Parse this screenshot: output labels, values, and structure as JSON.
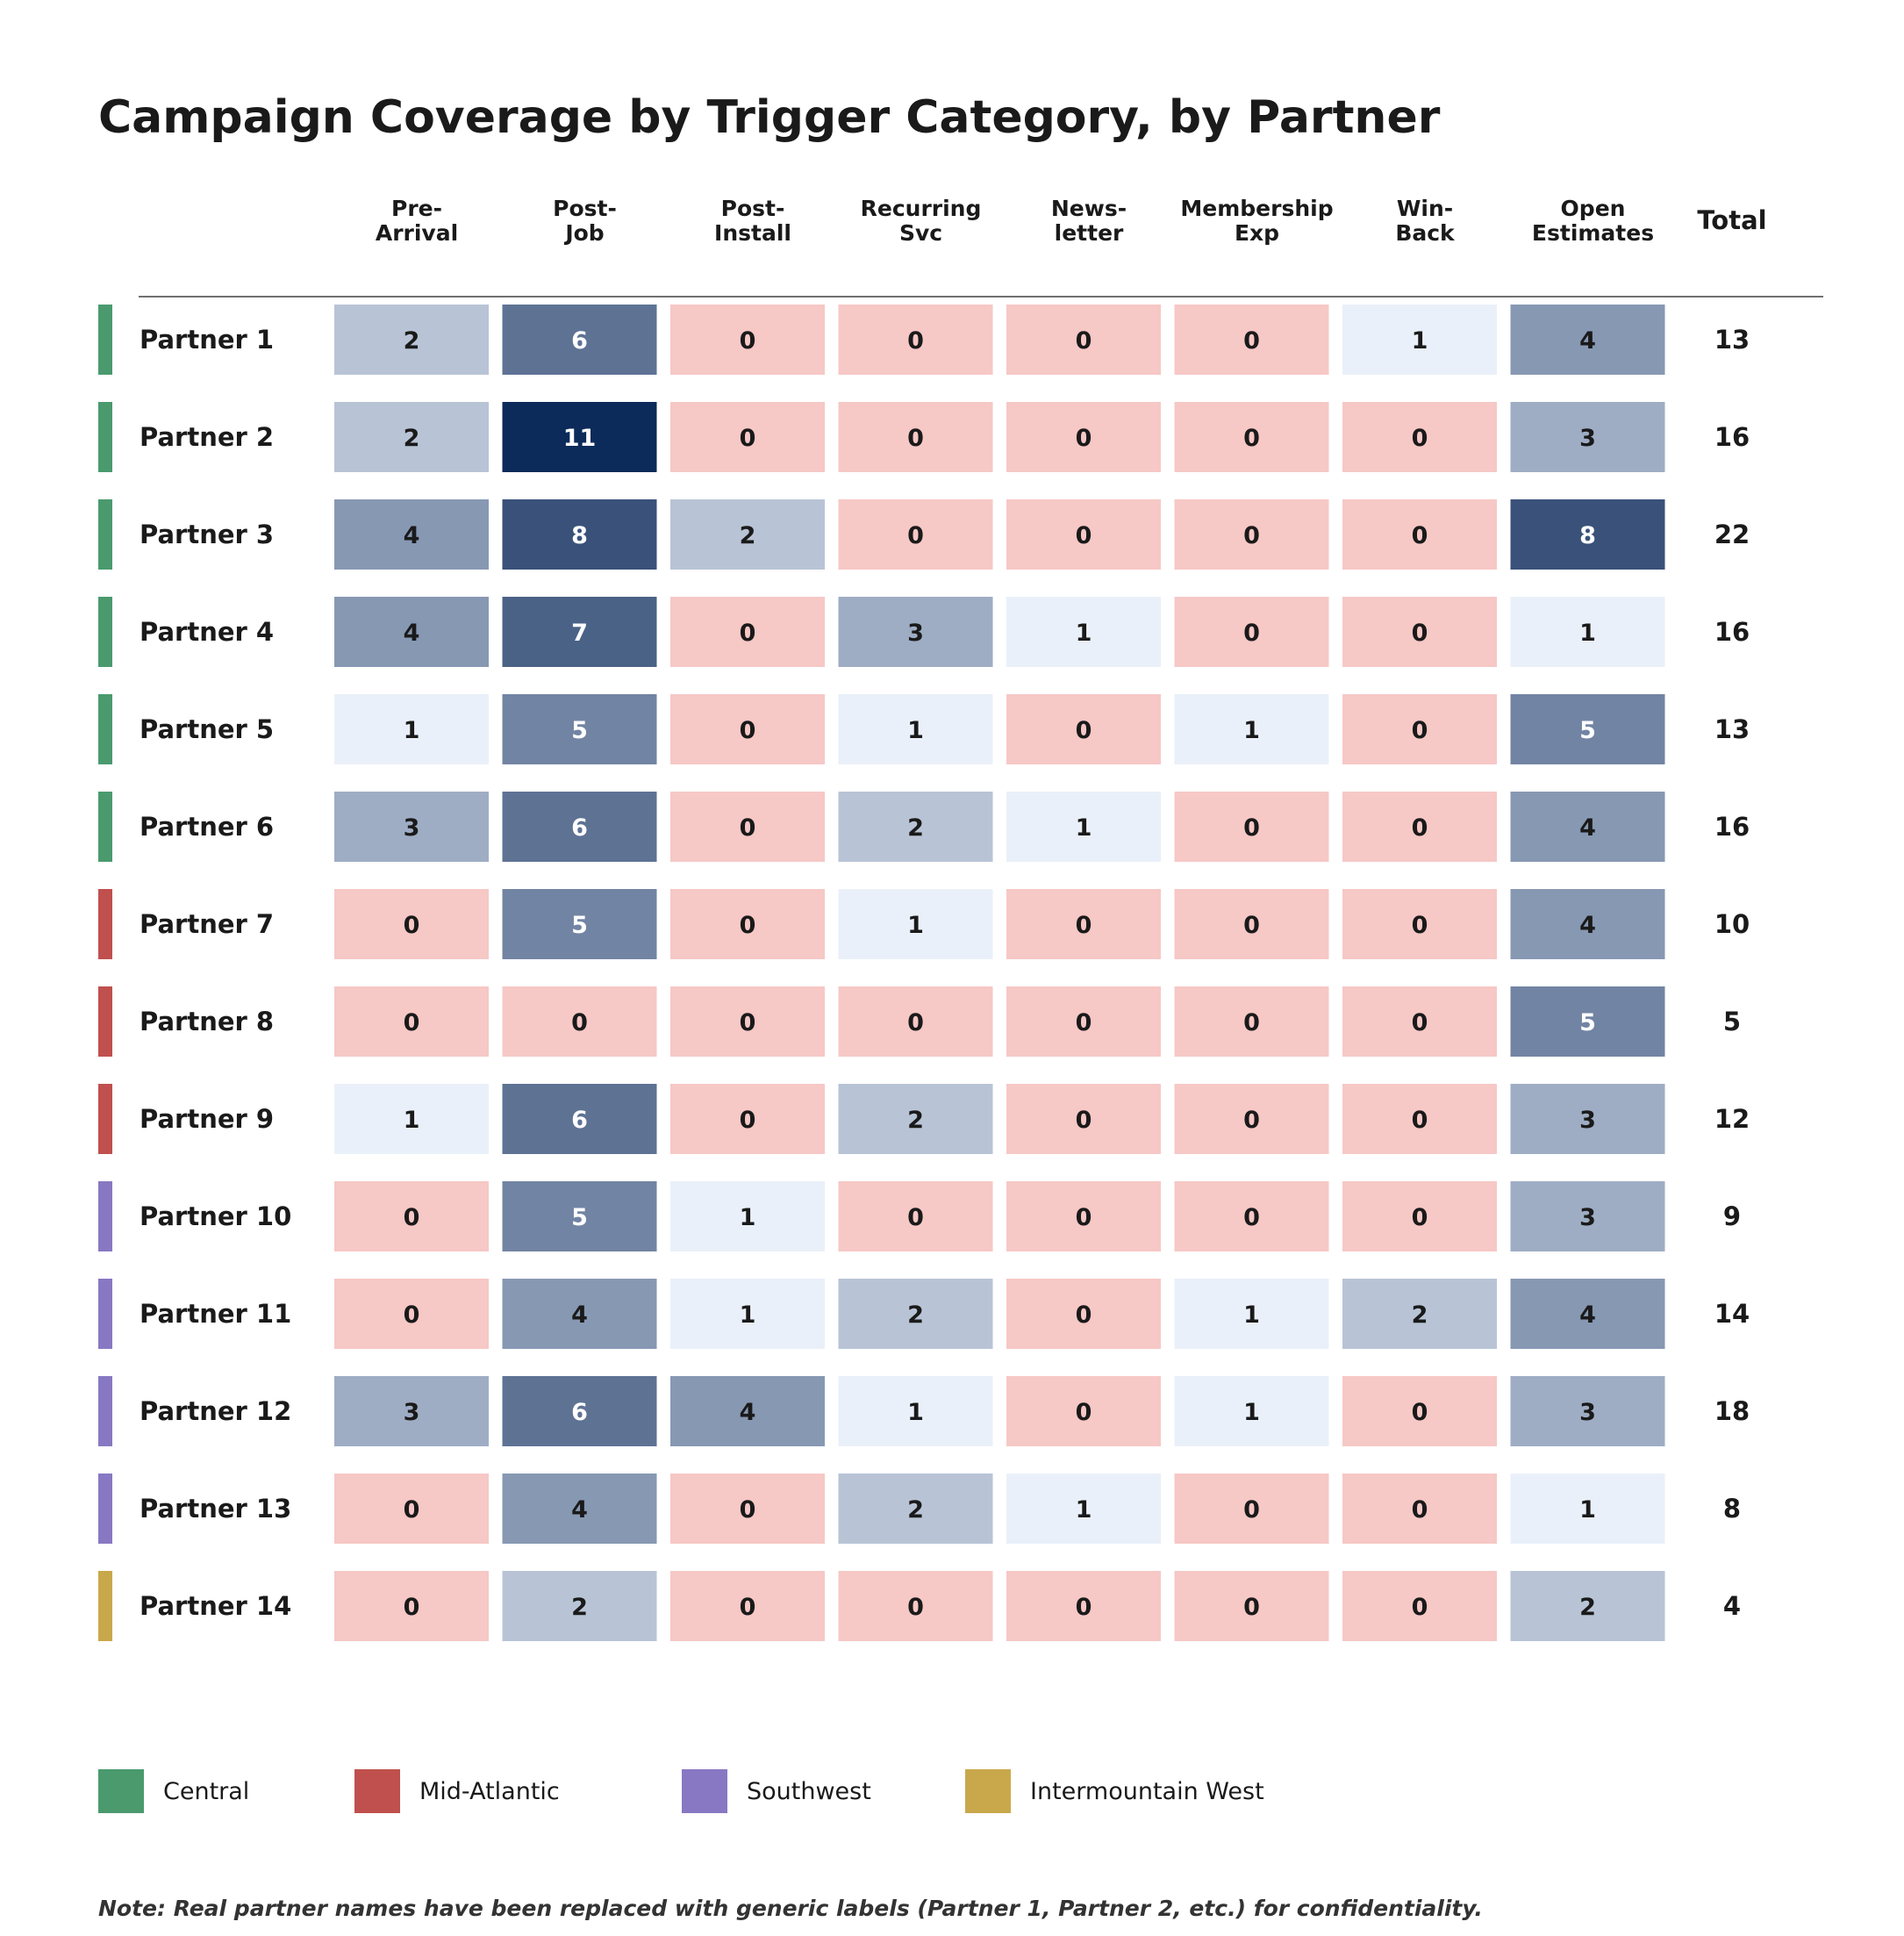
{
  "chart_data": {
    "type": "heatmap",
    "title": "Campaign Coverage by Trigger Category, by Partner",
    "columns": [
      [
        "Pre-",
        "Arrival"
      ],
      [
        "Post-",
        "Job"
      ],
      [
        "Post-",
        "Install"
      ],
      [
        "Recurring",
        "Svc"
      ],
      [
        "News-",
        "letter"
      ],
      [
        "Membership",
        "Exp"
      ],
      [
        "Win-",
        "Back"
      ],
      [
        "Open",
        "Estimates"
      ]
    ],
    "total_label": "Total",
    "rows": [
      {
        "label": "Partner 1",
        "region": "Central",
        "values": [
          2,
          6,
          0,
          0,
          0,
          0,
          1,
          4
        ],
        "total": 13
      },
      {
        "label": "Partner 2",
        "region": "Central",
        "values": [
          2,
          11,
          0,
          0,
          0,
          0,
          0,
          3
        ],
        "total": 16
      },
      {
        "label": "Partner 3",
        "region": "Central",
        "values": [
          4,
          8,
          2,
          0,
          0,
          0,
          0,
          8
        ],
        "total": 22
      },
      {
        "label": "Partner 4",
        "region": "Central",
        "values": [
          4,
          7,
          0,
          3,
          1,
          0,
          0,
          1
        ],
        "total": 16
      },
      {
        "label": "Partner 5",
        "region": "Central",
        "values": [
          1,
          5,
          0,
          1,
          0,
          1,
          0,
          5
        ],
        "total": 13
      },
      {
        "label": "Partner 6",
        "region": "Central",
        "values": [
          3,
          6,
          0,
          2,
          1,
          0,
          0,
          4
        ],
        "total": 16
      },
      {
        "label": "Partner 7",
        "region": "Mid-Atlantic",
        "values": [
          0,
          5,
          0,
          1,
          0,
          0,
          0,
          4
        ],
        "total": 10
      },
      {
        "label": "Partner 8",
        "region": "Mid-Atlantic",
        "values": [
          0,
          0,
          0,
          0,
          0,
          0,
          0,
          5
        ],
        "total": 5
      },
      {
        "label": "Partner 9",
        "region": "Mid-Atlantic",
        "values": [
          1,
          6,
          0,
          2,
          0,
          0,
          0,
          3
        ],
        "total": 12
      },
      {
        "label": "Partner 10",
        "region": "Southwest",
        "values": [
          0,
          5,
          1,
          0,
          0,
          0,
          0,
          3
        ],
        "total": 9
      },
      {
        "label": "Partner 11",
        "region": "Southwest",
        "values": [
          0,
          4,
          1,
          2,
          0,
          1,
          2,
          4
        ],
        "total": 14
      },
      {
        "label": "Partner 12",
        "region": "Southwest",
        "values": [
          3,
          6,
          4,
          1,
          0,
          1,
          0,
          3
        ],
        "total": 18
      },
      {
        "label": "Partner 13",
        "region": "Southwest",
        "values": [
          0,
          4,
          0,
          2,
          1,
          0,
          0,
          1
        ],
        "total": 8
      },
      {
        "label": "Partner 14",
        "region": "Intermountain West",
        "values": [
          0,
          2,
          0,
          0,
          0,
          0,
          0,
          2
        ],
        "total": 4
      }
    ],
    "legend": [
      {
        "name": "Central",
        "color": "#4a9a6e"
      },
      {
        "name": "Mid-Atlantic",
        "color": "#c0504d"
      },
      {
        "name": "Southwest",
        "color": "#8878c3"
      },
      {
        "name": "Intermountain West",
        "color": "#c9a84c"
      }
    ],
    "colors": {
      "zero": "#f6c8c6",
      "scale": {
        "1": "#eaf0f9",
        "2": "#b8c4d6",
        "3": "#9eadc4",
        "4": "#8798b3",
        "5": "#7284a3",
        "6": "#5e7294",
        "7": "#4a6286",
        "8": "#3a527a",
        "11": "#0c2a5a"
      },
      "dark_text_max": 4,
      "dark_text": "#1a1a1a",
      "light_text": "#ffffff"
    },
    "note": "Note: Real partner names have been replaced with generic labels (Partner 1, Partner 2, etc.) for confidentiality."
  }
}
